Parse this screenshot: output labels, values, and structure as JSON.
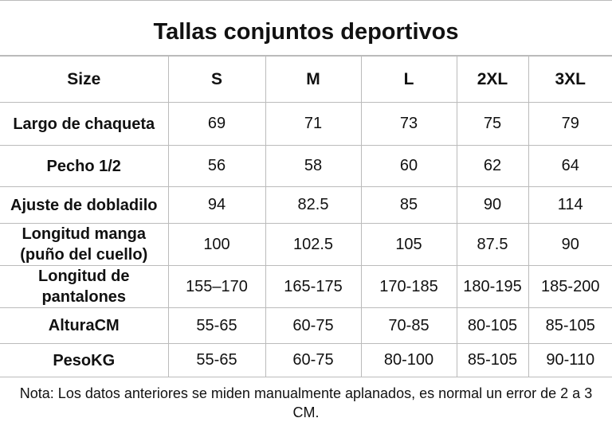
{
  "title": "Tallas conjuntos deportivos",
  "table": {
    "header": [
      "Size",
      "S",
      "M",
      "L",
      "2XL",
      "3XL"
    ],
    "rows": [
      [
        "Largo de chaqueta",
        "69",
        "71",
        "73",
        "75",
        "79"
      ],
      [
        "Pecho 1/2",
        "56",
        "58",
        "60",
        "62",
        "64"
      ],
      [
        "Ajuste de dobladilo",
        "94",
        "82.5",
        "85",
        "90",
        "114"
      ],
      [
        "Longitud manga (puño del cuello)",
        "100",
        "102.5",
        "105",
        "87.5",
        "90"
      ],
      [
        "Longitud de pantalones",
        "155–170",
        "165-175",
        "170-185",
        "180-195",
        "185-200"
      ],
      [
        "AlturaCM",
        "55-65",
        "60-75",
        "70-85",
        "80-105",
        "85-105"
      ],
      [
        "PesoKG",
        "55-65",
        "60-75",
        "80-100",
        "85-105",
        "90-110"
      ]
    ]
  },
  "note": "Nota: Los datos anteriores se miden manualmente aplanados, es normal un error de 2 a 3 CM."
}
